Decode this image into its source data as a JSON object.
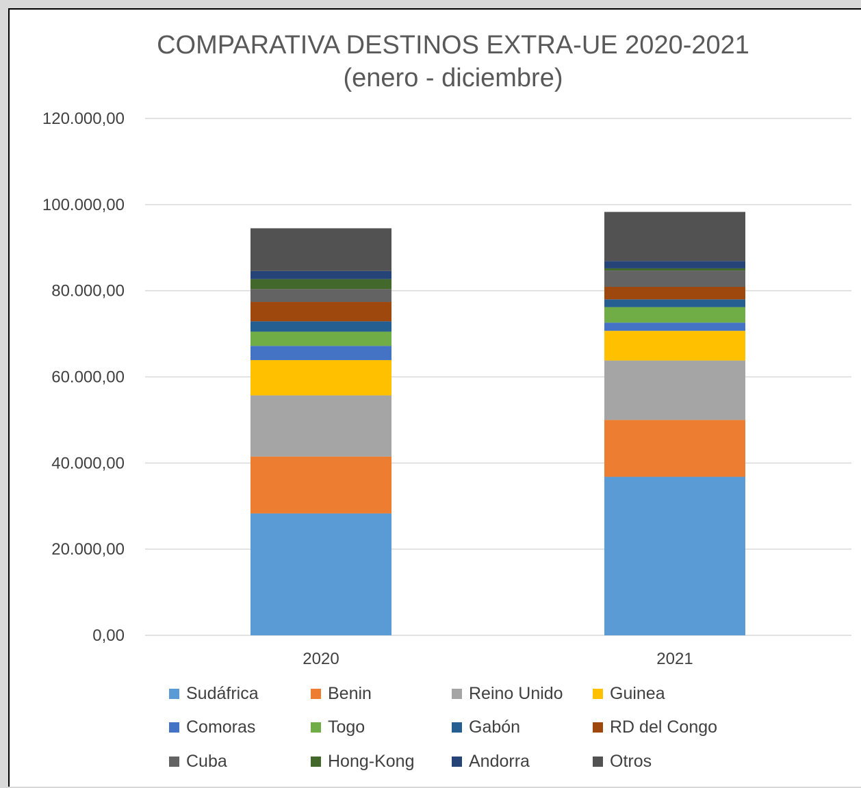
{
  "chart_data": {
    "type": "bar",
    "stacked": true,
    "title": "COMPARATIVA DESTINOS EXTRA-UE 2020-2021",
    "subtitle": "(enero - diciembre)",
    "categories": [
      "2020",
      "2021"
    ],
    "ylim": [
      0,
      120000
    ],
    "yticks": [
      0,
      20000,
      40000,
      60000,
      80000,
      100000,
      120000
    ],
    "ytick_labels": [
      "0,00",
      "20.000,00",
      "40.000,00",
      "60.000,00",
      "80.000,00",
      "100.000,00",
      "120.000,00"
    ],
    "grid": true,
    "legend_position": "bottom",
    "series": [
      {
        "name": "Sudáfrica",
        "color": "#5B9BD5",
        "values": [
          28300,
          36800
        ]
      },
      {
        "name": "Benin",
        "color": "#ED7D31",
        "values": [
          13200,
          13200
        ]
      },
      {
        "name": "Reino Unido",
        "color": "#A5A5A5",
        "values": [
          14200,
          13800
        ]
      },
      {
        "name": "Guinea",
        "color": "#FFC000",
        "values": [
          8200,
          6900
        ]
      },
      {
        "name": "Comoras",
        "color": "#4472C4",
        "values": [
          3300,
          1900
        ]
      },
      {
        "name": "Togo",
        "color": "#70AD47",
        "values": [
          3300,
          3600
        ]
      },
      {
        "name": "Gabón",
        "color": "#255E91",
        "values": [
          2400,
          1800
        ]
      },
      {
        "name": "RD del Congo",
        "color": "#9E480E",
        "values": [
          4500,
          2900
        ]
      },
      {
        "name": "Cuba",
        "color": "#636363",
        "values": [
          3000,
          3800
        ]
      },
      {
        "name": "Hong-Kong",
        "color": "#43682B",
        "values": [
          2300,
          500
        ]
      },
      {
        "name": "Andorra",
        "color": "#264478",
        "values": [
          1900,
          1700
        ]
      },
      {
        "name": "Otros",
        "color": "#525252",
        "values": [
          9900,
          11400
        ]
      }
    ]
  }
}
